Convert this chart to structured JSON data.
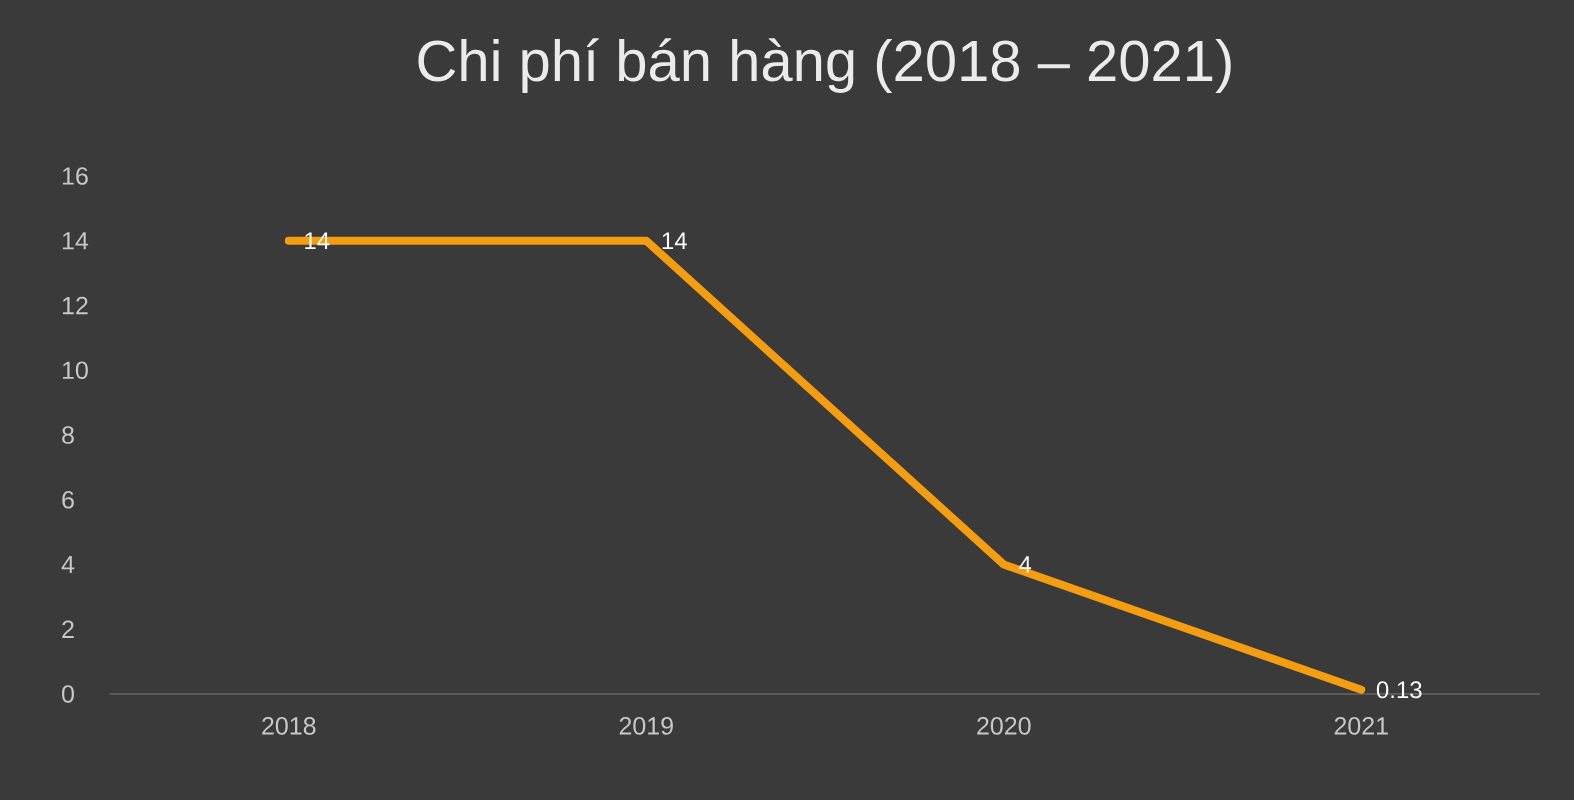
{
  "chart_data": {
    "type": "line",
    "title": "Chi phí bán hàng (2018 – 2021)",
    "categories": [
      "2018",
      "2019",
      "2020",
      "2021"
    ],
    "values": [
      14,
      14,
      4,
      0.13
    ],
    "color": "#f59d10",
    "ylim": [
      0,
      16
    ],
    "yticks": [
      0,
      2,
      4,
      6,
      8,
      10,
      12,
      14,
      16
    ],
    "data_labels": true,
    "value_labels": [
      "14",
      "14",
      "4",
      "0.13"
    ]
  }
}
